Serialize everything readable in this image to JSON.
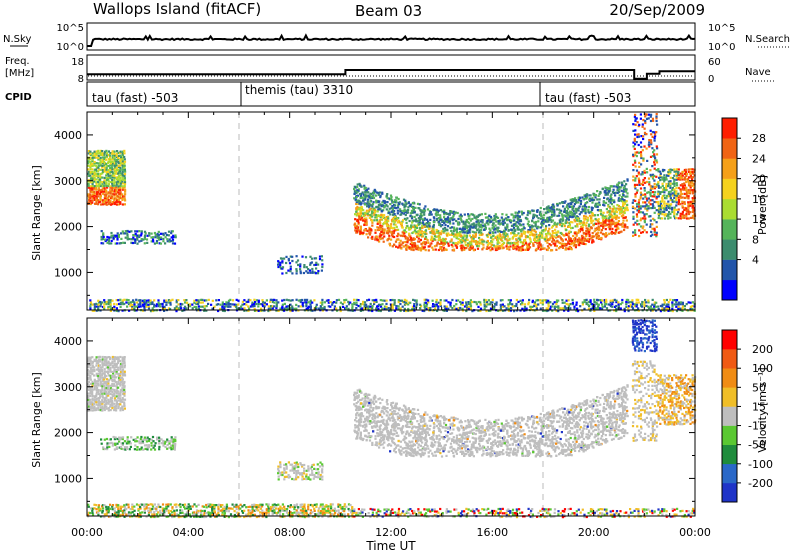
{
  "header": {
    "station": "Wallops Island (fitACF)",
    "beam": "Beam 03",
    "date": "20/Sep/2009"
  },
  "status_panels": {
    "nsky_label": "N.Sky",
    "nsky_ticks": [
      "10^5",
      "10^0"
    ],
    "nsearch_label": "N.Search",
    "nsearch_ticks": [
      "10^5",
      "10^0"
    ],
    "freq_label_line1": "Freq.",
    "freq_label_line2": "[MHz]",
    "freq_ticks": [
      "18",
      "8"
    ],
    "nave_label": "Nave",
    "nave_ticks": [
      "60",
      "0"
    ],
    "cpid_label": "CPID",
    "cpid_segments": [
      "tau (fast) -503",
      "themis (tau) 3310",
      "tau (fast) -503"
    ]
  },
  "axes": {
    "ylabel": "Slant Range [km]",
    "xlabel": "Time UT",
    "yticks": [
      "4000",
      "3000",
      "2000",
      "1000"
    ],
    "xticks": [
      "00:00",
      "04:00",
      "08:00",
      "12:00",
      "16:00",
      "20:00",
      "00:00"
    ]
  },
  "power_colorbar": {
    "label": "Power [dB]",
    "ticks": [
      "28",
      "24",
      "20",
      "16",
      "12",
      "8",
      "4"
    ],
    "colors": [
      "#0000ff",
      "#2255aa",
      "#3c8c6e",
      "#55b45a",
      "#aadc32",
      "#f5d21e",
      "#f5a019",
      "#f06414",
      "#ff1e00"
    ]
  },
  "velocity_colorbar": {
    "label": "Velocity [m s⁻¹]",
    "ticks": [
      "200",
      "100",
      "50",
      "15",
      "-15",
      "-50",
      "-100",
      "-200"
    ],
    "colors": [
      "#1f34c8",
      "#2a68c8",
      "#1f8c3c",
      "#5ac832",
      "#bebebe",
      "#f0be28",
      "#f08c14",
      "#f05a14",
      "#ff0000"
    ]
  },
  "chart_data": {
    "type": "heatmap",
    "time_range_hours": [
      0,
      24
    ],
    "range_km": [
      180,
      4500
    ],
    "cpid_changes_hours": [
      6.0,
      18.0
    ],
    "frequency_mhz": {
      "x": [
        0.0,
        6.0,
        6.0,
        10.2,
        10.2,
        21.6,
        21.6,
        22.1,
        22.1,
        22.6,
        22.6,
        24.0
      ],
      "y": [
        10.3,
        10.3,
        10.3,
        10.3,
        12.0,
        12.0,
        8.5,
        8.5,
        10.5,
        10.5,
        11.5,
        11.5
      ]
    },
    "power_regions": [
      {
        "t": [
          0.0,
          1.5
        ],
        "range_km": [
          2500,
          3700
        ],
        "db": "12-28"
      },
      {
        "t": [
          0.5,
          3.5
        ],
        "range_km": [
          1650,
          1950
        ],
        "db": "4-12"
      },
      {
        "t": [
          7.5,
          9.2
        ],
        "range_km": [
          1000,
          1400
        ],
        "db": "4-8"
      },
      {
        "t": [
          10.5,
          21.0
        ],
        "range_km": [
          1500,
          3300
        ],
        "db": "8-28"
      },
      {
        "t": [
          21.5,
          22.5
        ],
        "range_km": [
          1800,
          4500
        ],
        "db": "4-28"
      },
      {
        "t": [
          22.5,
          24.0
        ],
        "range_km": [
          2200,
          3300
        ],
        "db": "8-28"
      },
      {
        "t": [
          0.0,
          24.0
        ],
        "range_km": [
          180,
          450
        ],
        "db": "4-12"
      }
    ],
    "velocity_regions": [
      {
        "t": [
          0.0,
          1.5
        ],
        "range_km": [
          2500,
          3700
        ],
        "m_s": "-15 to 15"
      },
      {
        "t": [
          0.5,
          3.5
        ],
        "range_km": [
          1650,
          1950
        ],
        "m_s": "15 to 50"
      },
      {
        "t": [
          7.5,
          9.2
        ],
        "range_km": [
          1000,
          1400
        ],
        "m_s": "-15 to 50"
      },
      {
        "t": [
          10.5,
          21.0
        ],
        "range_km": [
          1500,
          3300
        ],
        "m_s": "-15 to 15"
      },
      {
        "t": [
          21.5,
          22.5
        ],
        "range_km": [
          3800,
          4500
        ],
        "m_s": "100 to 200"
      },
      {
        "t": [
          0.0,
          10.5
        ],
        "range_km": [
          180,
          450
        ],
        "m_s": "-100 to 50"
      }
    ]
  }
}
